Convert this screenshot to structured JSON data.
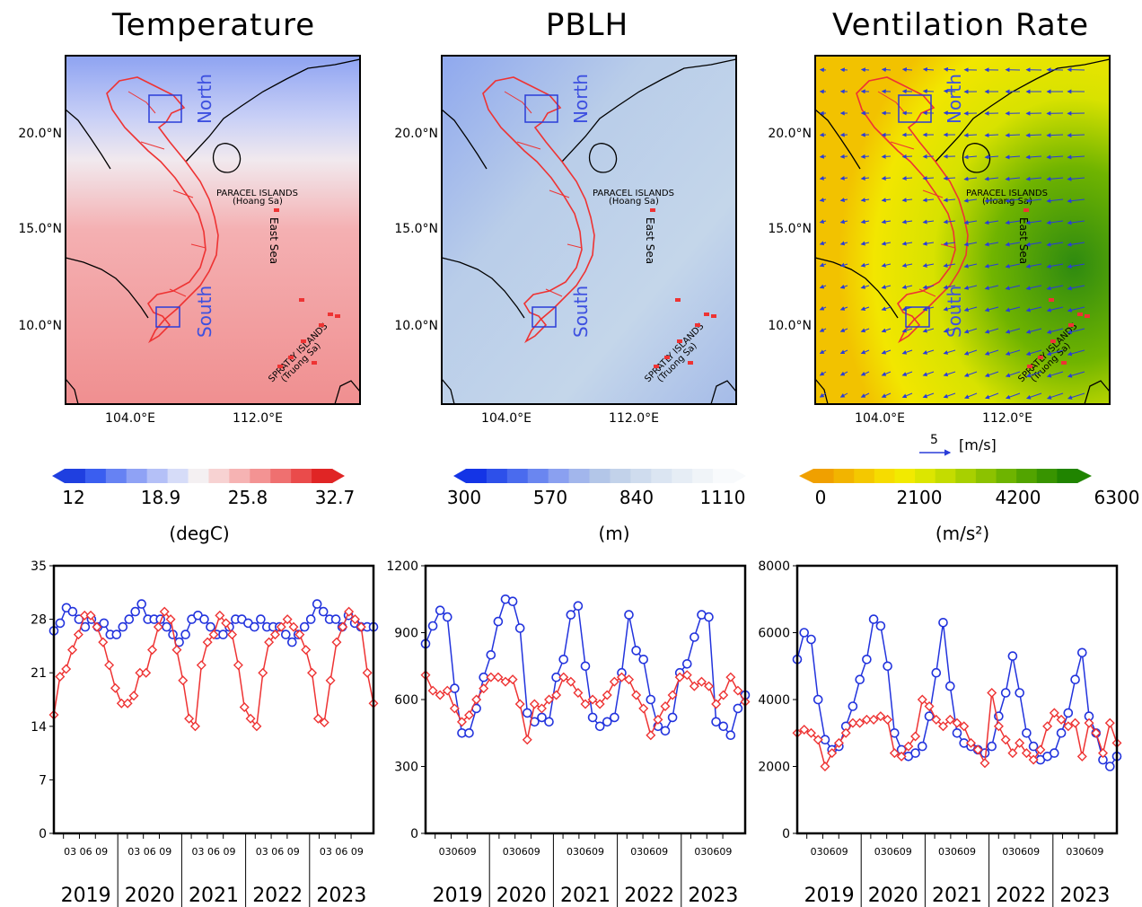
{
  "maps": [
    {
      "title": "Temperature",
      "unit": "(degC)",
      "colorbar_ticks": [
        "12",
        "18.9",
        "25.8",
        "32.7"
      ],
      "colorbar_colors": [
        "#1f3fe0",
        "#3a5ef0",
        "#6682f3",
        "#8fa2f5",
        "#b4c0f7",
        "#d6dcf8",
        "#f4f0f2",
        "#f7d2d2",
        "#f6b3b3",
        "#f39393",
        "#ef7070",
        "#ea4b4b",
        "#e02525"
      ],
      "lat_labels": [
        "20.0°N",
        "15.0°N",
        "10.0°N"
      ],
      "lon_labels": [
        "104.0°E",
        "112.0°E"
      ],
      "region_labels": {
        "north": "North",
        "south": "South"
      },
      "island_labels": {
        "paracel": "PARACEL ISLANDS",
        "paracel_sub": "(Hoang Sa)",
        "spratly": "SPRATLY ISLANDS",
        "spratly_sub": "(Truong Sa)",
        "sea": "East Sea"
      }
    },
    {
      "title": "PBLH",
      "unit": "(m)",
      "colorbar_ticks": [
        "300",
        "570",
        "840",
        "1110"
      ],
      "colorbar_colors": [
        "#1434e6",
        "#2d50ea",
        "#4a6bee",
        "#6a86f0",
        "#8aa0f0",
        "#a2b6ec",
        "#b3c6e8",
        "#c2d2ea",
        "#cfdcee",
        "#dbe5f2",
        "#e6edf5",
        "#f0f4f8",
        "#f8fafc"
      ],
      "lat_labels": [
        "20.0°N",
        "15.0°N",
        "10.0°N"
      ],
      "lon_labels": [
        "104.0°E",
        "112.0°E"
      ],
      "region_labels": {
        "north": "North",
        "south": "South"
      },
      "island_labels": {
        "paracel": "PARACEL ISLANDS",
        "paracel_sub": "(Hoang Sa)",
        "spratly": "SPRATLY ISLANDS",
        "spratly_sub": "(Truong Sa)",
        "sea": "East Sea"
      }
    },
    {
      "title": "Ventilation Rate",
      "unit": "(m/s²)",
      "colorbar_ticks": [
        "0",
        "2100",
        "4200",
        "6300"
      ],
      "colorbar_colors": [
        "#f0a000",
        "#f2b400",
        "#f4c800",
        "#f6dc00",
        "#f2ea00",
        "#dce600",
        "#c4dc00",
        "#a8d000",
        "#8cc200",
        "#6eb400",
        "#52a400",
        "#389400",
        "#208400"
      ],
      "lat_labels": [
        "20.0°N",
        "15.0°N",
        "10.0°N"
      ],
      "lon_labels": [
        "104.0°E",
        "112.0°E"
      ],
      "region_labels": {
        "north": "North",
        "south": "South"
      },
      "island_labels": {
        "paracel": "PARACEL ISLANDS",
        "paracel_sub": "(Hoang Sa)",
        "spratly": "SPRATLY ISLANDS",
        "spratly_sub": "(Truong Sa)",
        "sea": "East Sea"
      },
      "wind_scale": {
        "value": "5",
        "unit": "[m/s]"
      }
    }
  ],
  "colors": {
    "north_series": "#2233dd",
    "south_series": "#ee3333",
    "border": "#ee3333",
    "coast": "#000000"
  },
  "chart_data": [
    {
      "type": "line",
      "x": {
        "months_ticks": "03 06 09",
        "years": [
          "2019",
          "2020",
          "2021",
          "2022",
          "2023"
        ]
      },
      "ylim": [
        0,
        35
      ],
      "yticks": [
        0,
        7,
        14,
        21,
        28,
        35
      ],
      "series": [
        {
          "color": "#2233dd",
          "values": [
            26.5,
            27.5,
            29.5,
            29,
            28,
            27,
            28,
            27,
            27.5,
            26,
            26,
            27,
            28,
            29,
            30,
            28,
            28,
            28,
            27,
            26,
            25,
            26,
            28,
            28.5,
            28,
            27,
            26,
            26,
            27,
            28,
            28,
            27.5,
            27,
            28,
            27,
            27,
            27,
            26,
            25,
            26,
            27,
            28,
            30,
            29,
            28,
            28,
            27,
            28.5,
            27.5,
            27,
            27,
            27
          ]
        },
        {
          "color": "#ee3333",
          "values": [
            15.5,
            20.5,
            21.5,
            24,
            26,
            28.5,
            28.5,
            27,
            25,
            22,
            19,
            17,
            17,
            18,
            21,
            21,
            24,
            27,
            29,
            28,
            24,
            20,
            15,
            14,
            22,
            25,
            26,
            28.5,
            27.5,
            26,
            22,
            16.5,
            15,
            14,
            21,
            25,
            26,
            27,
            28,
            27,
            26,
            24,
            21,
            15,
            14.5,
            20,
            25,
            27,
            29,
            28,
            27,
            21,
            17
          ]
        }
      ]
    },
    {
      "type": "line",
      "x": {
        "months_ticks": "030609",
        "years": [
          "2019",
          "2020",
          "2021",
          "2022",
          "2023"
        ]
      },
      "ylim": [
        0,
        1200
      ],
      "yticks": [
        0,
        300,
        600,
        900,
        1200
      ],
      "series": [
        {
          "color": "#2233dd",
          "values": [
            850,
            930,
            1000,
            970,
            650,
            450,
            450,
            560,
            700,
            800,
            950,
            1050,
            1040,
            920,
            540,
            500,
            520,
            500,
            700,
            780,
            980,
            1020,
            750,
            520,
            480,
            500,
            520,
            720,
            980,
            820,
            780,
            600,
            480,
            460,
            520,
            720,
            760,
            880,
            980,
            970,
            500,
            480,
            440,
            560,
            620
          ]
        },
        {
          "color": "#ee3333",
          "values": [
            710,
            640,
            620,
            640,
            560,
            500,
            530,
            600,
            650,
            700,
            700,
            680,
            690,
            580,
            420,
            580,
            560,
            600,
            620,
            700,
            680,
            630,
            580,
            600,
            580,
            620,
            680,
            700,
            690,
            620,
            560,
            440,
            510,
            570,
            620,
            700,
            710,
            660,
            680,
            660,
            580,
            620,
            700,
            640,
            590
          ]
        }
      ]
    },
    {
      "type": "line",
      "x": {
        "months_ticks": "030609",
        "years": [
          "2019",
          "2020",
          "2021",
          "2022",
          "2023"
        ]
      },
      "ylim": [
        0,
        8000
      ],
      "yticks": [
        0,
        2000,
        4000,
        6000,
        8000
      ],
      "series": [
        {
          "color": "#2233dd",
          "values": [
            5200,
            6000,
            5800,
            4000,
            2800,
            2500,
            2600,
            3200,
            3800,
            4600,
            5200,
            6400,
            6200,
            5000,
            3000,
            2500,
            2300,
            2400,
            2600,
            3500,
            4800,
            6300,
            4400,
            3000,
            2700,
            2600,
            2500,
            2400,
            2600,
            3500,
            4200,
            5300,
            4200,
            3000,
            2600,
            2200,
            2300,
            2400,
            3000,
            3600,
            4600,
            5400,
            3500,
            3000,
            2200,
            2000,
            2300
          ]
        },
        {
          "color": "#ee3333",
          "values": [
            3000,
            3100,
            3000,
            2800,
            2000,
            2400,
            2700,
            3000,
            3300,
            3300,
            3400,
            3400,
            3500,
            3400,
            2400,
            2300,
            2600,
            2900,
            4000,
            3800,
            3400,
            3200,
            3400,
            3300,
            3200,
            2700,
            2500,
            2100,
            4200,
            3200,
            2800,
            2400,
            2700,
            2400,
            2200,
            2500,
            3200,
            3600,
            3400,
            3200,
            3300,
            2300,
            3300,
            3000,
            2400,
            3300,
            2700
          ]
        }
      ]
    }
  ]
}
